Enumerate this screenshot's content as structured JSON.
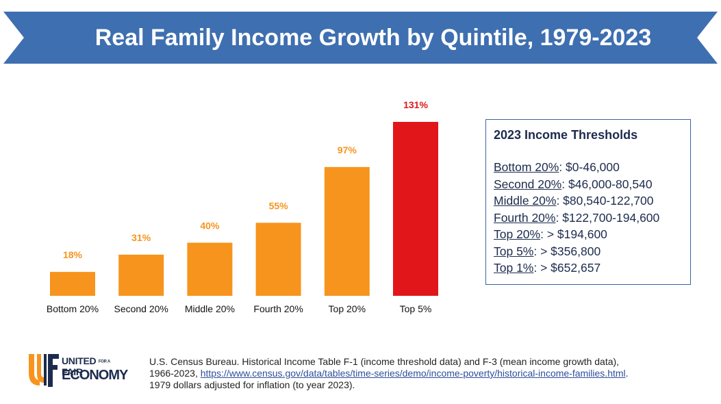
{
  "header": {
    "title": "Real Family Income Growth by Quintile, 1979-2023"
  },
  "colors": {
    "banner": "#3e6fb0",
    "bar": "#f7941d",
    "highlight": "#e0161b",
    "text_navy": "#1c2b4d"
  },
  "chart_data": {
    "type": "bar",
    "title": "Real Family Income Growth by Quintile, 1979-2023",
    "categories": [
      "Bottom 20%",
      "Second 20%",
      "Middle 20%",
      "Fourth 20%",
      "Top 20%",
      "Top 5%"
    ],
    "values": [
      18,
      31,
      40,
      55,
      97,
      131
    ],
    "value_labels": [
      "18%",
      "31%",
      "40%",
      "55%",
      "97%",
      "131%"
    ],
    "highlight_index": 5,
    "xlabel": "",
    "ylabel": "",
    "ylim": [
      0,
      131
    ]
  },
  "thresholds": {
    "title": "2023 Income Thresholds",
    "items": [
      {
        "name": "Bottom 20%",
        "value": ": $0-46,000"
      },
      {
        "name": "Second 20%",
        "value": ": $46,000-80,540"
      },
      {
        "name": "Middle 20%",
        "value": ": $80,540-122,700"
      },
      {
        "name": "Fourth 20%",
        "value": ": $122,700-194,600"
      },
      {
        "name": "Top 20%",
        "value": ": > $194,600"
      },
      {
        "name": "Top 5%",
        "value": ": > $356,800"
      },
      {
        "name": "Top 1%",
        "value": ": > $652,657"
      }
    ]
  },
  "logo": {
    "line1": "UNITED",
    "for": "FOR A",
    "fair": "FAIR",
    "line2": "ECONOMY"
  },
  "source": {
    "line1": "U.S. Census Bureau. Historical Income Table F-1 (income threshold data) and F-3 (mean income growth data),",
    "line2_prefix": "1966-2023, ",
    "link": "https://www.census.gov/data/tables/time-series/demo/income-poverty/historical-income-families.html",
    "line2_suffix": ".",
    "line3": "1979 dollars adjusted for inflation (to year 2023)."
  }
}
